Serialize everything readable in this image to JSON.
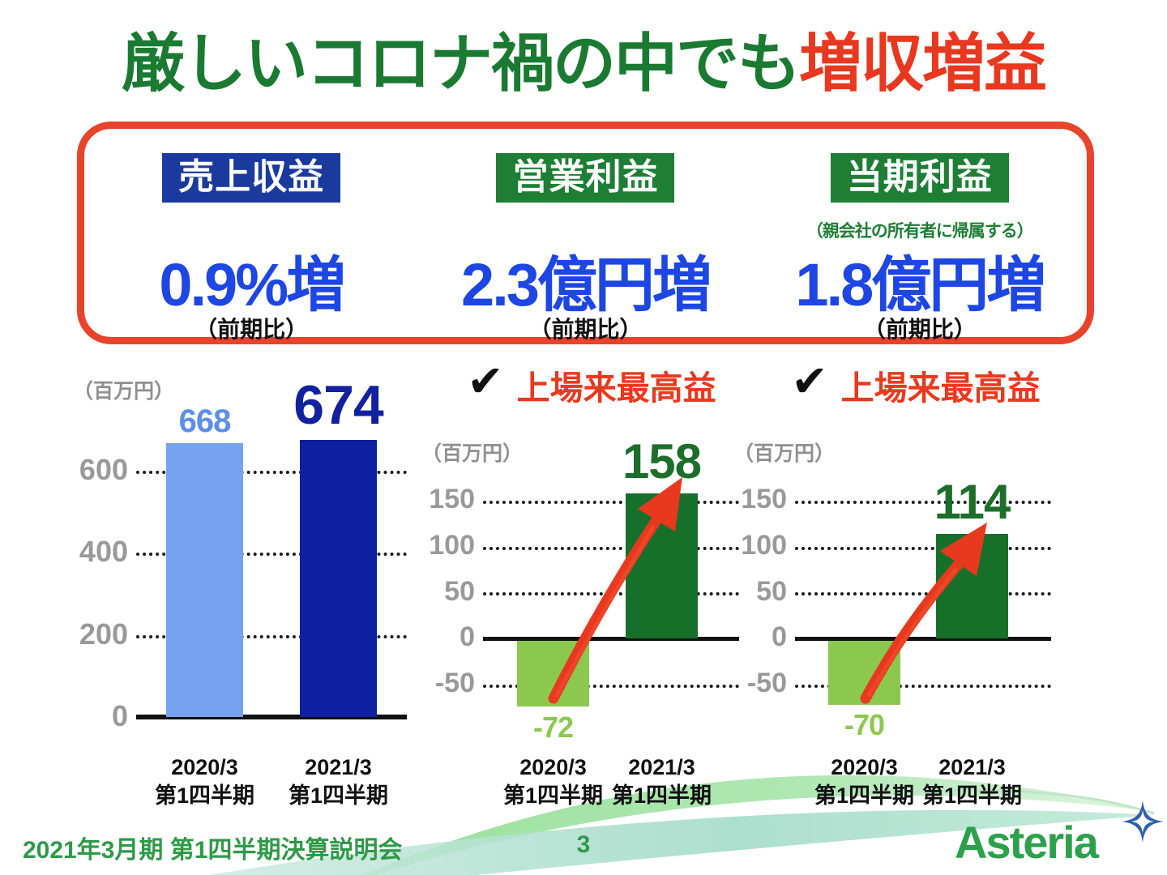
{
  "slide": {
    "title": {
      "green_part": "厳しいコロナ禍の中でも",
      "red_part": "増収増益"
    }
  },
  "highlights": {
    "metrics": [
      {
        "label": "売上収益",
        "value": "0.9%増",
        "basis": "（前期比）"
      },
      {
        "label": "営業利益",
        "value": "2.3億円増",
        "basis": "（前期比）"
      },
      {
        "label": "当期利益",
        "sub_note": "（親会社の所有者に帰属する）",
        "value": "1.8億円増",
        "basis": "（前期比）"
      }
    ]
  },
  "record_badges": [
    {
      "check": "✔",
      "text": "上場来最高益"
    },
    {
      "check": "✔",
      "text": "上場来最高益"
    }
  ],
  "chart_data": [
    {
      "type": "bar",
      "metric": "売上収益",
      "unit": "（百万円）",
      "categories": [
        [
          "2020/3",
          "第1四半期"
        ],
        [
          "2021/3",
          "第1四半期"
        ]
      ],
      "values": [
        668,
        674
      ],
      "bar_colors": [
        "#76a3ef",
        "#0e20a1"
      ],
      "value_label_colors": [
        "#5b8fe8",
        "#12219f"
      ],
      "yticks": [
        600,
        400,
        200,
        0
      ],
      "ylim": [
        0,
        700
      ],
      "grid": true,
      "legend": "none"
    },
    {
      "type": "bar",
      "metric": "営業利益",
      "unit": "（百万円）",
      "categories": [
        [
          "2020/3",
          "第1四半期"
        ],
        [
          "2021/3",
          "第1四半期"
        ]
      ],
      "values": [
        -72,
        158
      ],
      "bar_colors": [
        "#8cc84e",
        "#17702a"
      ],
      "value_label_colors": [
        "#8cc84e",
        "#1c6e2a"
      ],
      "yticks": [
        150,
        100,
        50,
        0,
        -50
      ],
      "ylim": [
        -90,
        175
      ],
      "grid": true,
      "annotation": "上場来最高益",
      "arrow": true,
      "legend": "none"
    },
    {
      "type": "bar",
      "metric": "当期利益（親会社の所有者に帰属する）",
      "unit": "（百万円）",
      "categories": [
        [
          "2020/3",
          "第1四半期"
        ],
        [
          "2021/3",
          "第1四半期"
        ]
      ],
      "values": [
        -70,
        114
      ],
      "bar_colors": [
        "#8cc84e",
        "#17702a"
      ],
      "value_label_colors": [
        "#8cc84e",
        "#1c6e2a"
      ],
      "yticks": [
        150,
        100,
        50,
        0,
        -50
      ],
      "ylim": [
        -90,
        175
      ],
      "grid": true,
      "annotation": "上場来最高益",
      "arrow": true,
      "legend": "none"
    }
  ],
  "footer": {
    "event_title": "2021年3月期 第1四半期決算説明会",
    "page_number": "3",
    "logo_text": "Asteria"
  },
  "colors": {
    "title_green": "#1b7a32",
    "accent_red": "#e8381f",
    "box_border_red": "#e8432b",
    "revenue_label_bg": "#1b3a9e",
    "profit_label_bg": "#1e7e35",
    "value_blue": "#1d46e3",
    "arrow_red": "#e8391f",
    "footer_green": "#2f9948",
    "logo_green": "#2da04c",
    "logo_star_blue": "#2f5fae"
  }
}
